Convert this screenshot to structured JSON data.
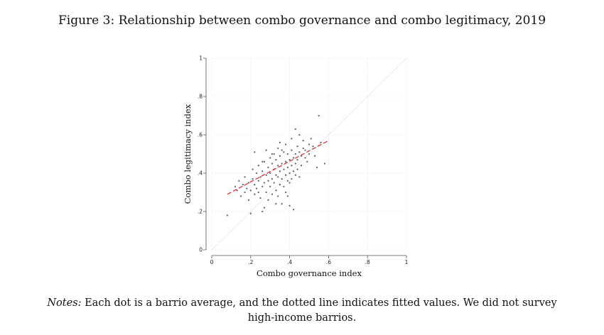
{
  "figure": {
    "title": "Figure 3: Relationship between combo governance and combo legitimacy, 2019",
    "notes_label": "Notes:",
    "notes_text": "Each dot is a barrio average, and the dotted line indicates fitted values. We did not survey high-income barrios."
  },
  "chart_data": {
    "type": "scatter",
    "xlabel": "Combo governance index",
    "ylabel": "Combo legitimacy index",
    "xlim": [
      0,
      1
    ],
    "ylim": [
      0,
      1
    ],
    "xticks": [
      "0",
      ".2",
      ".4",
      ".6",
      ".8",
      "1"
    ],
    "yticks": [
      "0",
      ".2",
      ".4",
      ".6",
      ".8",
      "1"
    ],
    "grid": true,
    "fit_line": {
      "x": [
        0.08,
        0.6
      ],
      "y": [
        0.29,
        0.57
      ],
      "color": "#d62728",
      "style": "dashed"
    },
    "reference_line": {
      "x": [
        0,
        1
      ],
      "y": [
        0,
        1
      ],
      "style": "dotted"
    },
    "point_color": "#666666",
    "points": [
      [
        0.08,
        0.18
      ],
      [
        0.12,
        0.33
      ],
      [
        0.13,
        0.31
      ],
      [
        0.14,
        0.36
      ],
      [
        0.15,
        0.28
      ],
      [
        0.16,
        0.34
      ],
      [
        0.17,
        0.3
      ],
      [
        0.17,
        0.38
      ],
      [
        0.18,
        0.32
      ],
      [
        0.19,
        0.26
      ],
      [
        0.19,
        0.35
      ],
      [
        0.2,
        0.19
      ],
      [
        0.2,
        0.31
      ],
      [
        0.21,
        0.42
      ],
      [
        0.21,
        0.37
      ],
      [
        0.22,
        0.29
      ],
      [
        0.22,
        0.34
      ],
      [
        0.23,
        0.4
      ],
      [
        0.23,
        0.32
      ],
      [
        0.24,
        0.36
      ],
      [
        0.24,
        0.44
      ],
      [
        0.25,
        0.27
      ],
      [
        0.25,
        0.38
      ],
      [
        0.26,
        0.2
      ],
      [
        0.26,
        0.33
      ],
      [
        0.26,
        0.41
      ],
      [
        0.27,
        0.35
      ],
      [
        0.27,
        0.46
      ],
      [
        0.28,
        0.3
      ],
      [
        0.28,
        0.39
      ],
      [
        0.28,
        0.52
      ],
      [
        0.29,
        0.36
      ],
      [
        0.29,
        0.43
      ],
      [
        0.3,
        0.33
      ],
      [
        0.3,
        0.4
      ],
      [
        0.3,
        0.48
      ],
      [
        0.31,
        0.37
      ],
      [
        0.31,
        0.45
      ],
      [
        0.31,
        0.29
      ],
      [
        0.32,
        0.42
      ],
      [
        0.32,
        0.5
      ],
      [
        0.32,
        0.35
      ],
      [
        0.33,
        0.39
      ],
      [
        0.33,
        0.47
      ],
      [
        0.33,
        0.31
      ],
      [
        0.34,
        0.44
      ],
      [
        0.34,
        0.38
      ],
      [
        0.34,
        0.53
      ],
      [
        0.35,
        0.41
      ],
      [
        0.35,
        0.34
      ],
      [
        0.35,
        0.49
      ],
      [
        0.36,
        0.45
      ],
      [
        0.36,
        0.37
      ],
      [
        0.36,
        0.24
      ],
      [
        0.37,
        0.42
      ],
      [
        0.37,
        0.51
      ],
      [
        0.37,
        0.33
      ],
      [
        0.38,
        0.46
      ],
      [
        0.38,
        0.39
      ],
      [
        0.38,
        0.55
      ],
      [
        0.39,
        0.43
      ],
      [
        0.39,
        0.36
      ],
      [
        0.39,
        0.5
      ],
      [
        0.4,
        0.47
      ],
      [
        0.4,
        0.4
      ],
      [
        0.4,
        0.23
      ],
      [
        0.41,
        0.44
      ],
      [
        0.41,
        0.52
      ],
      [
        0.41,
        0.58
      ],
      [
        0.42,
        0.48
      ],
      [
        0.42,
        0.41
      ],
      [
        0.42,
        0.21
      ],
      [
        0.43,
        0.5
      ],
      [
        0.43,
        0.45
      ],
      [
        0.43,
        0.63
      ],
      [
        0.44,
        0.47
      ],
      [
        0.44,
        0.54
      ],
      [
        0.44,
        0.42
      ],
      [
        0.45,
        0.51
      ],
      [
        0.45,
        0.6
      ],
      [
        0.46,
        0.49
      ],
      [
        0.46,
        0.44
      ],
      [
        0.47,
        0.53
      ],
      [
        0.47,
        0.57
      ],
      [
        0.48,
        0.48
      ],
      [
        0.48,
        0.52
      ],
      [
        0.49,
        0.46
      ],
      [
        0.5,
        0.55
      ],
      [
        0.5,
        0.5
      ],
      [
        0.51,
        0.58
      ],
      [
        0.52,
        0.54
      ],
      [
        0.53,
        0.49
      ],
      [
        0.54,
        0.43
      ],
      [
        0.55,
        0.7
      ],
      [
        0.56,
        0.56
      ],
      [
        0.58,
        0.45
      ],
      [
        0.22,
        0.51
      ],
      [
        0.27,
        0.22
      ],
      [
        0.29,
        0.26
      ],
      [
        0.34,
        0.28
      ],
      [
        0.36,
        0.52
      ],
      [
        0.38,
        0.3
      ],
      [
        0.4,
        0.35
      ],
      [
        0.45,
        0.38
      ],
      [
        0.24,
        0.3
      ],
      [
        0.26,
        0.46
      ],
      [
        0.31,
        0.5
      ],
      [
        0.33,
        0.24
      ],
      [
        0.35,
        0.56
      ],
      [
        0.39,
        0.28
      ],
      [
        0.41,
        0.37
      ],
      [
        0.43,
        0.39
      ]
    ]
  }
}
